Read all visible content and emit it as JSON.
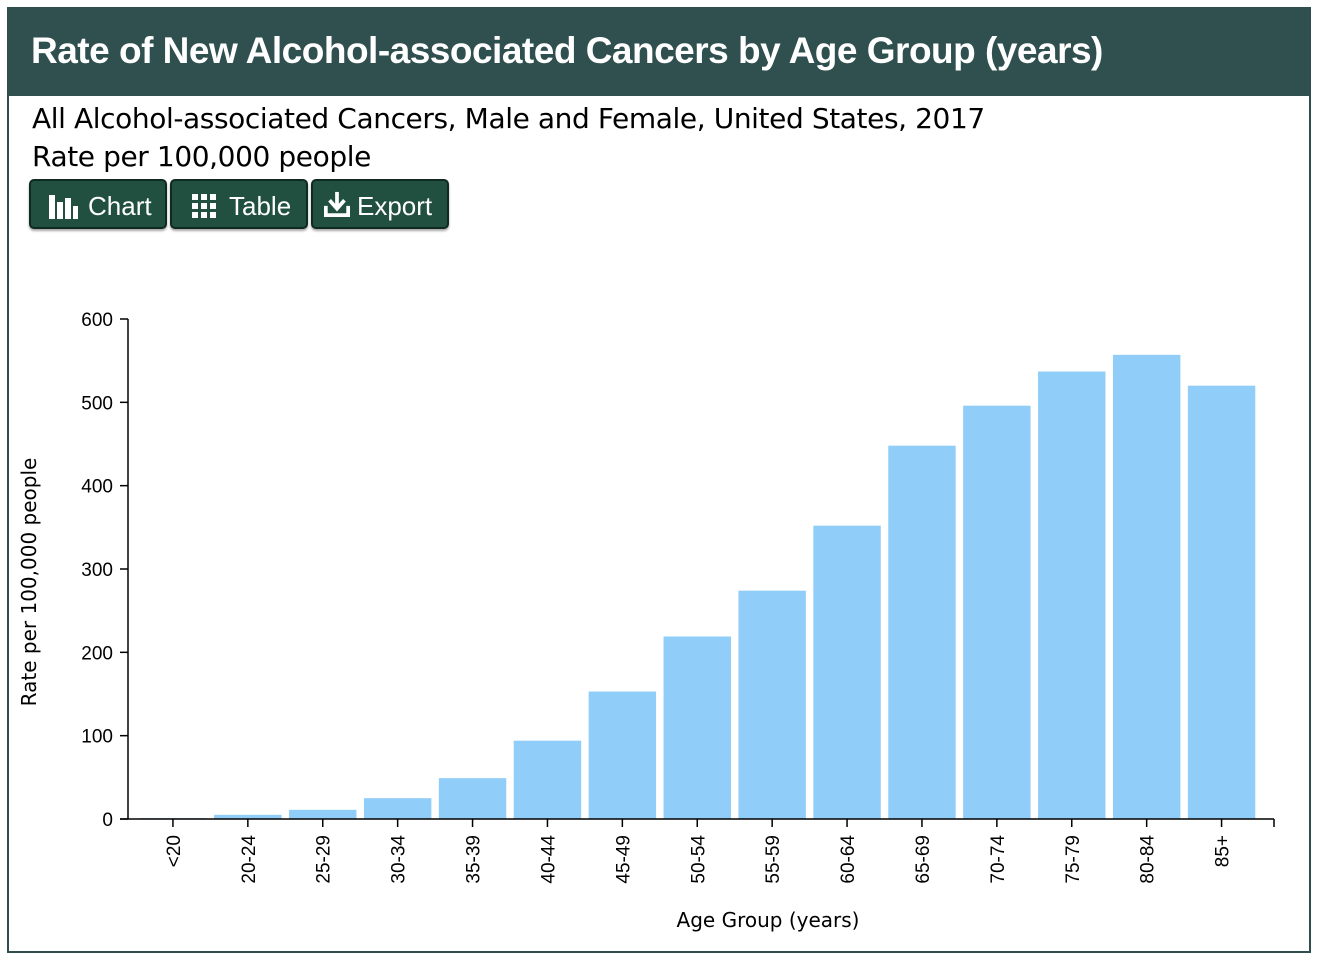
{
  "header": {
    "title": "Rate of New Alcohol-associated Cancers by Age Group (years)"
  },
  "subtitle": {
    "line1": "All Alcohol-associated Cancers, Male and Female, United States, 2017",
    "line2": "Rate per 100,000 people"
  },
  "toolbar": {
    "chart_label": "Chart",
    "table_label": "Table",
    "export_label": "Export",
    "chart_icon": "bar-chart-icon",
    "table_icon": "grid-icon",
    "export_icon": "download-icon"
  },
  "colors": {
    "header_bg": "#305050",
    "button_bg": "#214f40",
    "bar": "#90cdf8"
  },
  "chart_data": {
    "type": "bar",
    "categories": [
      "<20",
      "20-24",
      "25-29",
      "30-34",
      "35-39",
      "40-44",
      "45-49",
      "50-54",
      "55-59",
      "60-64",
      "65-69",
      "70-74",
      "75-79",
      "80-84",
      "85+"
    ],
    "values": [
      1,
      5,
      11,
      25,
      49,
      94,
      153,
      219,
      274,
      352,
      448,
      496,
      537,
      557,
      520
    ],
    "xlabel": "Age Group (years)",
    "ylabel": "Rate per 100,000 people",
    "ylim": [
      0,
      600
    ],
    "yticks": [
      0,
      100,
      200,
      300,
      400,
      500,
      600
    ],
    "grid": false
  }
}
